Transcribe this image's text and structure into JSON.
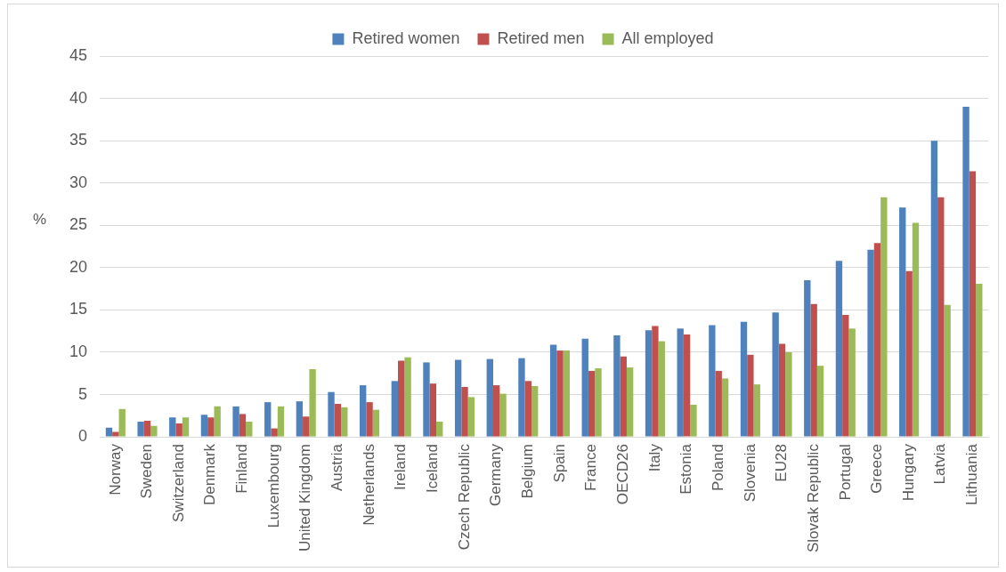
{
  "chart_data": {
    "type": "bar",
    "ylabel": "%",
    "categories": [
      "Norway",
      "Sweden",
      "Switzerland",
      "Denmark",
      "Finland",
      "Luxembourg",
      "United Kingdom",
      "Austria",
      "Netherlands",
      "Ireland",
      "Iceland",
      "Czech Republic",
      "Germany",
      "Belgium",
      "Spain",
      "France",
      "OECD26",
      "Italy",
      "Estonia",
      "Poland",
      "Slovenia",
      "EU28",
      "Slovak Republic",
      "Portugal",
      "Greece",
      "Hungary",
      "Latvia",
      "Lithuania"
    ],
    "series": [
      {
        "name": "Retired women",
        "color": "#4f81bd",
        "values": [
          1.1,
          1.8,
          2.3,
          2.6,
          3.6,
          4.1,
          4.2,
          5.3,
          6.1,
          6.6,
          8.8,
          9.1,
          9.2,
          9.3,
          10.9,
          11.6,
          12.0,
          12.6,
          12.8,
          13.2,
          13.6,
          14.7,
          18.5,
          20.8,
          22.1,
          27.1,
          35.0,
          39.0
        ]
      },
      {
        "name": "Retired men",
        "color": "#c0504d",
        "values": [
          0.6,
          1.9,
          1.6,
          2.3,
          2.7,
          1.0,
          2.4,
          3.9,
          4.1,
          9.0,
          6.3,
          5.9,
          6.1,
          6.6,
          10.2,
          7.8,
          9.5,
          13.1,
          12.1,
          7.8,
          9.7,
          11.0,
          15.7,
          14.4,
          22.9,
          19.6,
          28.3,
          31.4
        ]
      },
      {
        "name": "All employed",
        "color": "#9bbb59",
        "values": [
          3.3,
          1.3,
          2.3,
          3.6,
          1.8,
          3.6,
          8.0,
          3.5,
          3.2,
          9.4,
          1.8,
          4.7,
          5.1,
          6.0,
          10.2,
          8.1,
          8.2,
          11.3,
          3.8,
          6.9,
          6.2,
          10.0,
          8.4,
          12.8,
          28.3,
          25.3,
          15.6,
          18.1
        ]
      }
    ],
    "ylim": [
      0,
      45
    ],
    "yticks": [
      0,
      5,
      10,
      15,
      20,
      25,
      30,
      35,
      40,
      45
    ],
    "grid": "y",
    "legend": "top"
  }
}
